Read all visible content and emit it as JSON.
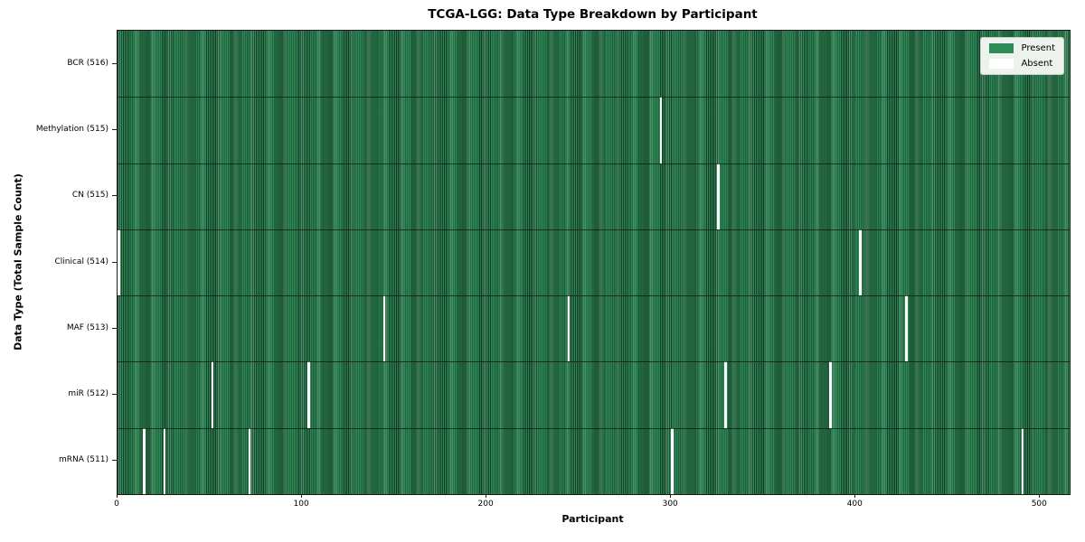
{
  "title": "TCGA-LGG: Data Type Breakdown by Participant",
  "colors": {
    "present": "#2e8b57",
    "bar_edge": "#143c26",
    "absent": "#ffffff",
    "legend_bg": "#edf2ed",
    "legend_border": "#c9cfc9"
  },
  "chart_data": {
    "type": "heatmap",
    "title": "TCGA-LGG: Data Type Breakdown by Participant",
    "xlabel": "Participant",
    "ylabel": "Data Type (Total Sample Count)",
    "x_ticks": [
      0,
      100,
      200,
      300,
      400,
      500
    ],
    "n_participants": 516,
    "grid": false,
    "legend_position": "upper right",
    "legend": [
      {
        "label": "Present",
        "color": "#2e8b57"
      },
      {
        "label": "Absent",
        "color": "#ffffff"
      }
    ],
    "rows": [
      {
        "label": "BCR (516)",
        "count": 516,
        "absent_participants": []
      },
      {
        "label": "Methylation (515)",
        "count": 515,
        "absent_participants": [
          294
        ]
      },
      {
        "label": "CN (515)",
        "count": 515,
        "absent_participants": [
          325
        ]
      },
      {
        "label": "Clinical (514)",
        "count": 514,
        "absent_participants": [
          0,
          402
        ]
      },
      {
        "label": "MAF (513)",
        "count": 513,
        "absent_participants": [
          144,
          244,
          427
        ]
      },
      {
        "label": "miR (512)",
        "count": 512,
        "absent_participants": [
          51,
          103,
          329,
          386
        ]
      },
      {
        "label": "mRNA (511)",
        "count": 511,
        "absent_participants": [
          14,
          25,
          71,
          300,
          490
        ]
      }
    ]
  }
}
